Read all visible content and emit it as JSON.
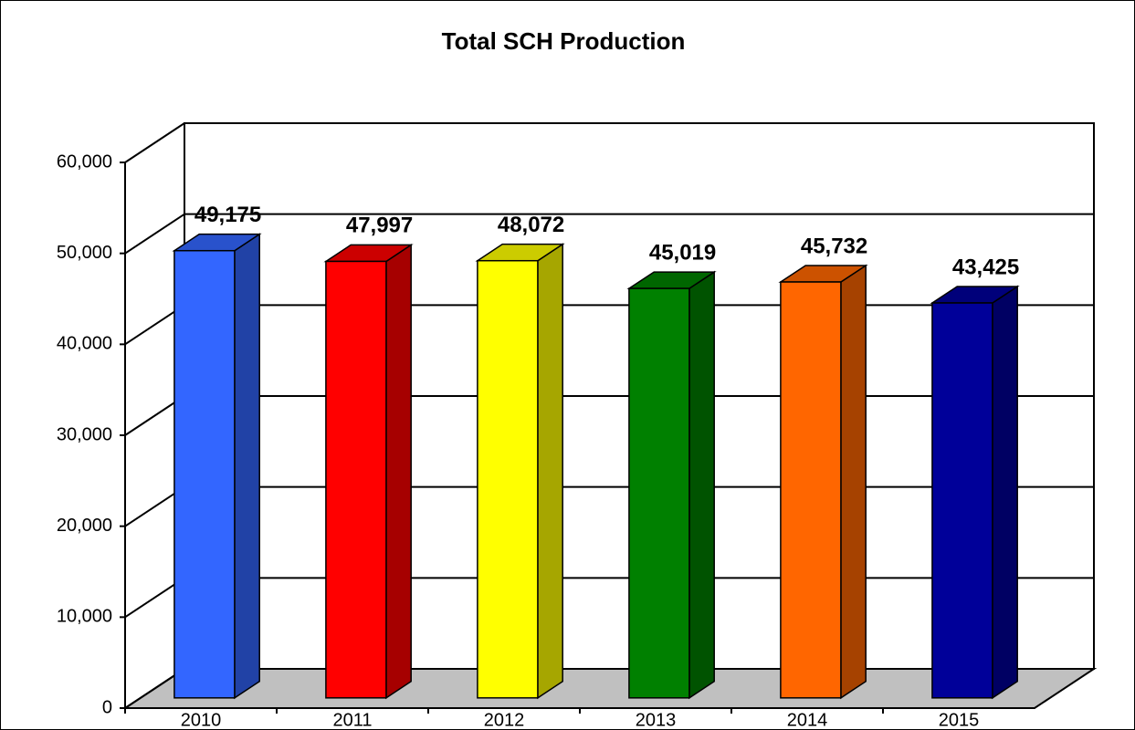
{
  "chart_data": {
    "type": "bar3d",
    "title": "Total SCH Production",
    "categories": [
      "2010",
      "2011",
      "2012",
      "2013",
      "2014",
      "2015"
    ],
    "values": [
      49175,
      47997,
      48072,
      45019,
      45732,
      43425
    ],
    "value_labels": [
      "49,175",
      "47,997",
      "48,072",
      "45,019",
      "45,732",
      "43,425"
    ],
    "colors": [
      "#3366ff",
      "#ff0000",
      "#ffff00",
      "#008000",
      "#ff6600",
      "#000099"
    ],
    "ylim": [
      0,
      60000
    ],
    "yticks": [
      0,
      {
        "value": 10000,
        "label": "10,000"
      },
      {
        "value": 20000,
        "label": "20,000"
      },
      {
        "value": 30000,
        "label": "30,000"
      },
      {
        "value": 40000,
        "label": "40,000"
      },
      {
        "value": 50000,
        "label": "50,000"
      },
      {
        "value": 60000,
        "label": "60,000"
      }
    ],
    "grid": true
  }
}
